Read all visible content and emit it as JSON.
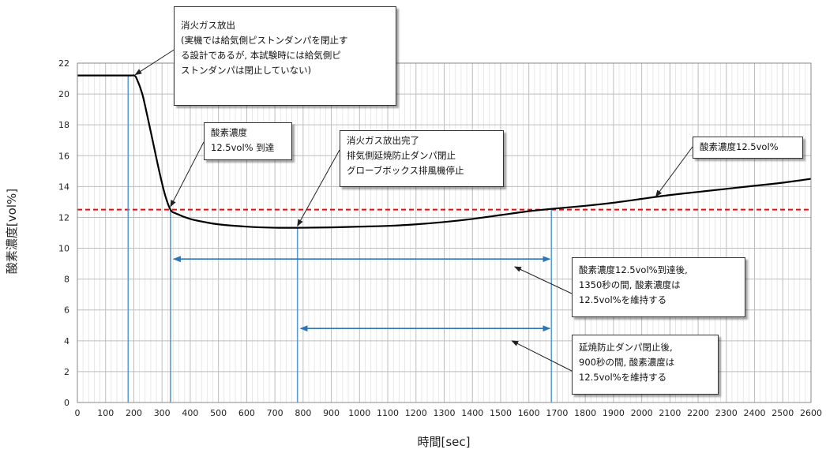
{
  "chart_data": {
    "type": "line",
    "xlabel": "時間[sec]",
    "ylabel": "酸素濃度[vol%]",
    "xlim": [
      0,
      2600
    ],
    "ylim": [
      0,
      22
    ],
    "x_ticks": [
      0,
      100,
      200,
      300,
      400,
      500,
      600,
      700,
      800,
      900,
      1000,
      1100,
      1200,
      1300,
      1400,
      1500,
      1600,
      1700,
      1800,
      1900,
      2000,
      2100,
      2200,
      2300,
      2400,
      2500,
      2600
    ],
    "y_ticks": [
      0,
      2,
      4,
      6,
      8,
      10,
      12,
      14,
      16,
      18,
      20,
      22
    ],
    "grid": true,
    "series": [
      {
        "color": "#000000",
        "points": [
          [
            0,
            21.2
          ],
          [
            180,
            21.2
          ],
          [
            200,
            21.2
          ],
          [
            210,
            21.0
          ],
          [
            230,
            20.0
          ],
          [
            250,
            18.4
          ],
          [
            270,
            16.7
          ],
          [
            290,
            15.0
          ],
          [
            310,
            13.5
          ],
          [
            330,
            12.5
          ],
          [
            350,
            12.25
          ],
          [
            400,
            11.9
          ],
          [
            450,
            11.7
          ],
          [
            500,
            11.55
          ],
          [
            600,
            11.4
          ],
          [
            700,
            11.33
          ],
          [
            800,
            11.33
          ],
          [
            900,
            11.35
          ],
          [
            1000,
            11.4
          ],
          [
            1100,
            11.45
          ],
          [
            1200,
            11.55
          ],
          [
            1300,
            11.7
          ],
          [
            1400,
            11.9
          ],
          [
            1500,
            12.15
          ],
          [
            1600,
            12.4
          ],
          [
            1680,
            12.55
          ],
          [
            1800,
            12.75
          ],
          [
            1900,
            12.95
          ],
          [
            2000,
            13.2
          ],
          [
            2100,
            13.45
          ],
          [
            2200,
            13.65
          ],
          [
            2300,
            13.85
          ],
          [
            2400,
            14.05
          ],
          [
            2500,
            14.25
          ],
          [
            2600,
            14.5
          ]
        ]
      }
    ],
    "reference_line": {
      "y": 12.5,
      "color": "#ff0000",
      "style": "dashed"
    },
    "vertical_lines": [
      {
        "x": 180,
        "color": "#5b9bd5"
      },
      {
        "x": 330,
        "color": "#5b9bd5"
      },
      {
        "x": 780,
        "color": "#5b9bd5"
      },
      {
        "x": 1680,
        "color": "#5b9bd5"
      }
    ],
    "spans": [
      {
        "x0": 330,
        "x1": 1680,
        "y": 9.3,
        "color": "#2e75b6"
      },
      {
        "x0": 780,
        "x1": 1680,
        "y": 4.8,
        "color": "#2e75b6"
      }
    ],
    "annotations": [
      {
        "lines": [
          "消火ガス放出",
          "(実機では給気側ピストンダンパを閉止す",
          "る設計であるが, 本試験時には給気側ピ",
          "ストンダンパは閉止していない)"
        ]
      },
      {
        "lines": [
          "酸素濃度",
          "12.5vol% 到達"
        ]
      },
      {
        "lines": [
          "消火ガス放出完了",
          "排気側延焼防止ダンパ閉止",
          "グローブボックス排風機停止"
        ]
      },
      {
        "lines": [
          "酸素濃度12.5vol%"
        ]
      },
      {
        "lines": [
          "酸素濃度12.5vol%到達後,",
          "1350秒の間, 酸素濃度は",
          "12.5vol%を維持する"
        ]
      },
      {
        "lines": [
          "延焼防止ダンパ閉止後,",
          "900秒の間, 酸素濃度は",
          "12.5vol%を維持する"
        ]
      }
    ]
  }
}
